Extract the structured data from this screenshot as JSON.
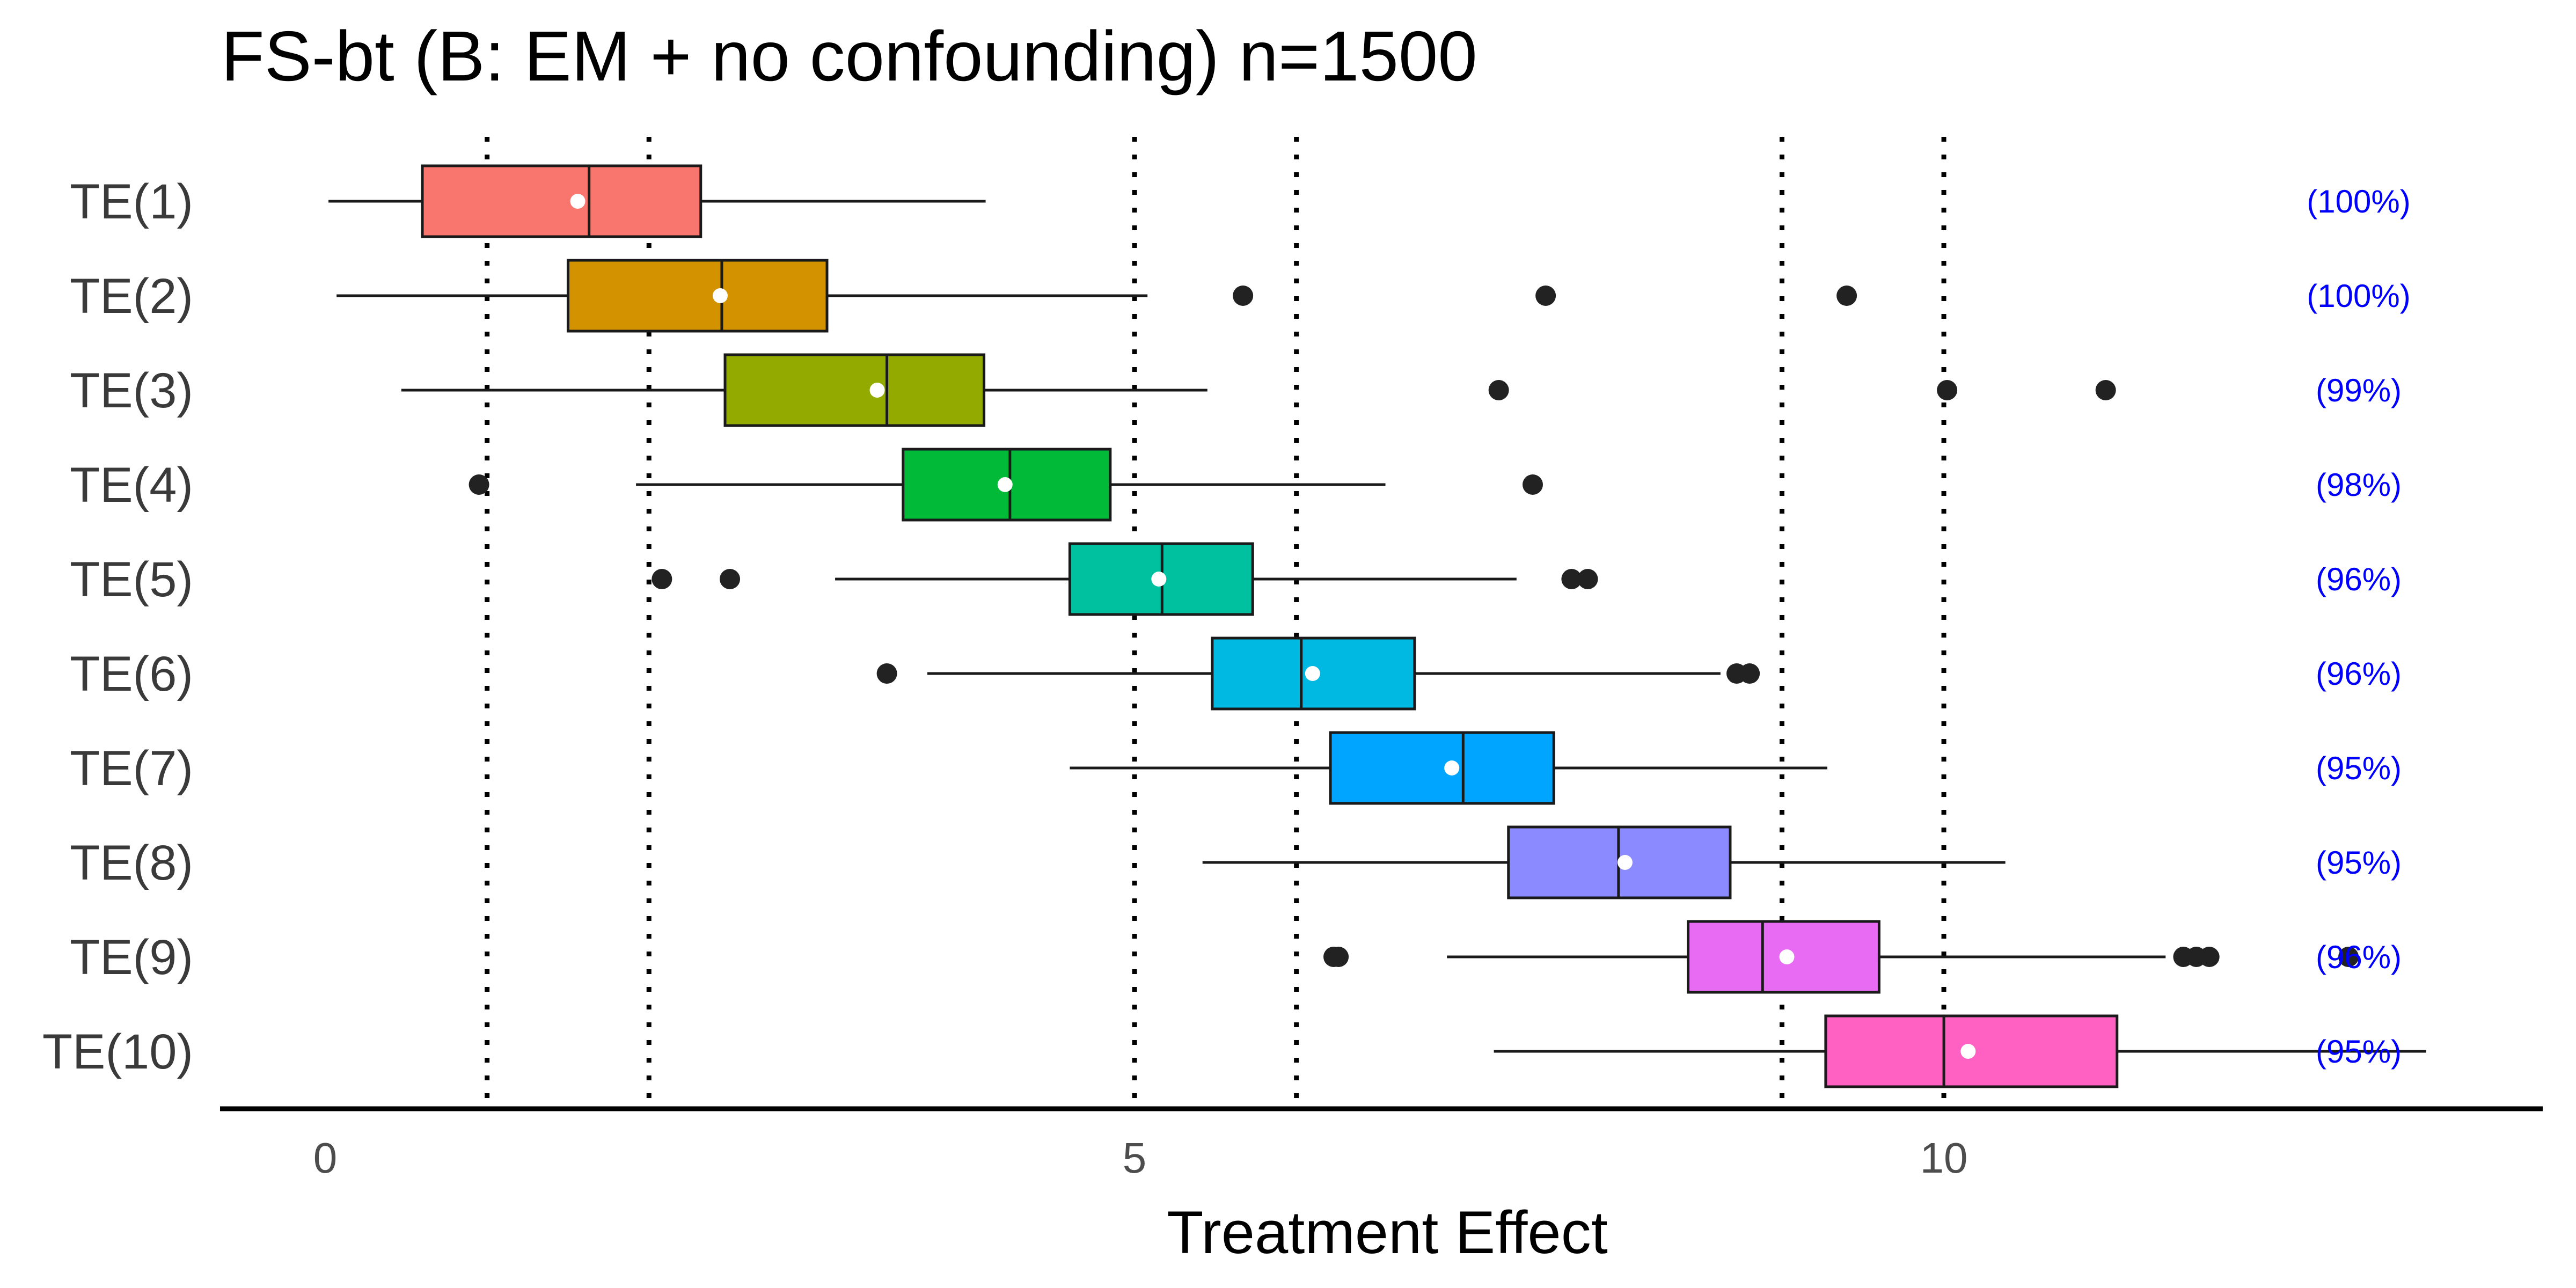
{
  "chart_data": {
    "type": "boxplot",
    "orientation": "horizontal",
    "title": "FS-bt (B: EM + no confounding) n=1500",
    "xlabel": "Treatment Effect",
    "ylabel": "",
    "xlim": [
      -0.65,
      13.7
    ],
    "x_ticks": [
      0,
      5,
      10
    ],
    "x_tick_labels": [
      "0",
      "5",
      "10"
    ],
    "reference_lines": [
      1,
      2,
      5,
      6,
      9,
      10
    ],
    "reference_line_style": "dotted",
    "grid": false,
    "legend": "none",
    "categories": [
      "TE(1)",
      "TE(2)",
      "TE(3)",
      "TE(4)",
      "TE(5)",
      "TE(6)",
      "TE(7)",
      "TE(8)",
      "TE(9)",
      "TE(10)"
    ],
    "coverage_labels": [
      "(100%)",
      "(100%)",
      "(99%)",
      "(98%)",
      "(96%)",
      "(96%)",
      "(95%)",
      "(95%)",
      "(96%)",
      "(95%)"
    ],
    "colors": [
      "#F8766D",
      "#D39200",
      "#93AA00",
      "#00BA38",
      "#00C19F",
      "#00B9E3",
      "#00A5FF",
      "#8B8BFF",
      "#E76BF3",
      "#FF61C3"
    ],
    "boxes": [
      {
        "label": "TE(1)",
        "whisker_low": 0.02,
        "q1": 0.6,
        "median": 1.63,
        "q3": 2.32,
        "whisker_high": 4.08,
        "mean": 1.56,
        "outliers": []
      },
      {
        "label": "TE(2)",
        "whisker_low": 0.07,
        "q1": 1.5,
        "median": 2.45,
        "q3": 3.1,
        "whisker_high": 5.08,
        "mean": 2.44,
        "outliers": [
          5.67,
          7.54,
          9.4
        ]
      },
      {
        "label": "TE(3)",
        "whisker_low": 0.47,
        "q1": 2.47,
        "median": 3.47,
        "q3": 4.07,
        "whisker_high": 5.45,
        "mean": 3.41,
        "outliers": [
          7.25,
          10.02,
          11.0
        ]
      },
      {
        "label": "TE(4)",
        "whisker_low": 1.92,
        "q1": 3.57,
        "median": 4.23,
        "q3": 4.85,
        "whisker_high": 6.55,
        "mean": 4.2,
        "outliers": [
          0.95,
          7.46
        ]
      },
      {
        "label": "TE(5)",
        "whisker_low": 3.15,
        "q1": 4.6,
        "median": 5.17,
        "q3": 5.73,
        "whisker_high": 7.36,
        "mean": 5.15,
        "outliers": [
          2.08,
          2.5,
          7.7,
          7.8
        ]
      },
      {
        "label": "TE(6)",
        "whisker_low": 3.72,
        "q1": 5.48,
        "median": 6.03,
        "q3": 6.73,
        "whisker_high": 8.62,
        "mean": 6.1,
        "outliers": [
          3.47,
          8.72,
          8.8
        ]
      },
      {
        "label": "TE(7)",
        "whisker_low": 4.6,
        "q1": 6.21,
        "median": 7.03,
        "q3": 7.59,
        "whisker_high": 9.28,
        "mean": 6.96,
        "outliers": []
      },
      {
        "label": "TE(8)",
        "whisker_low": 5.42,
        "q1": 7.31,
        "median": 7.99,
        "q3": 8.68,
        "whisker_high": 10.38,
        "mean": 8.03,
        "outliers": []
      },
      {
        "label": "TE(9)",
        "whisker_low": 6.93,
        "q1": 8.42,
        "median": 8.88,
        "q3": 9.6,
        "whisker_high": 11.37,
        "mean": 9.03,
        "outliers": [
          6.23,
          6.26,
          11.48,
          11.56,
          11.64,
          12.5
        ]
      },
      {
        "label": "TE(10)",
        "whisker_low": 7.22,
        "q1": 9.27,
        "median": 10.0,
        "q3": 11.07,
        "whisker_high": 12.98,
        "mean": 10.15,
        "outliers": []
      }
    ]
  }
}
